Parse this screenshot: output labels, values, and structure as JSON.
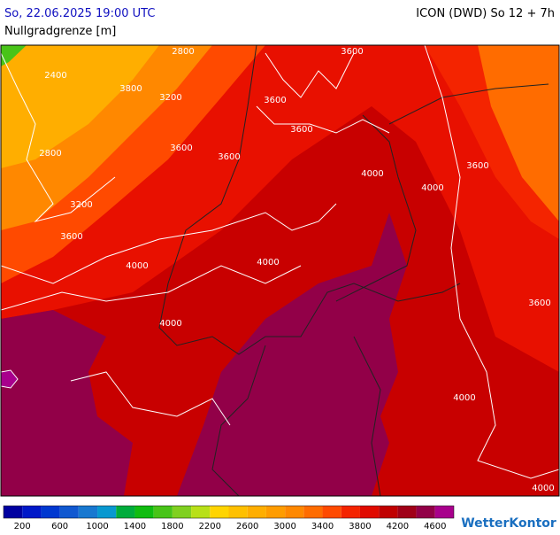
{
  "header": {
    "datetime": "So, 22.06.2025 19:00 UTC",
    "model": "ICON (DWD) So 12 + 7h",
    "title": "Nullgradgrenze [m]"
  },
  "map": {
    "contour_labels": [
      "2800",
      "2400",
      "3800",
      "3200",
      "2800",
      "3600",
      "3600",
      "3600",
      "3600",
      "3600",
      "3200",
      "3600",
      "4000",
      "4000",
      "3600",
      "4000",
      "4000",
      "4000",
      "3600",
      "4000",
      "4000"
    ]
  },
  "legend": {
    "colors": [
      "#0000a0",
      "#0018c8",
      "#0038d0",
      "#1058d0",
      "#1878d0",
      "#0898d0",
      "#00ac3c",
      "#10bc10",
      "#48c418",
      "#80d020",
      "#b8e018",
      "#ffd400",
      "#ffc000",
      "#ffae00",
      "#ff9c00",
      "#ff8800",
      "#ff6c00",
      "#ff4a00",
      "#f42400",
      "#e00a00",
      "#c00000",
      "#a00018",
      "#920048",
      "#a8008c"
    ],
    "labels": [
      "200",
      "600",
      "1000",
      "1400",
      "1800",
      "2200",
      "2600",
      "3000",
      "3400",
      "3800",
      "4200",
      "4600"
    ]
  },
  "logo": "WetterKontor"
}
